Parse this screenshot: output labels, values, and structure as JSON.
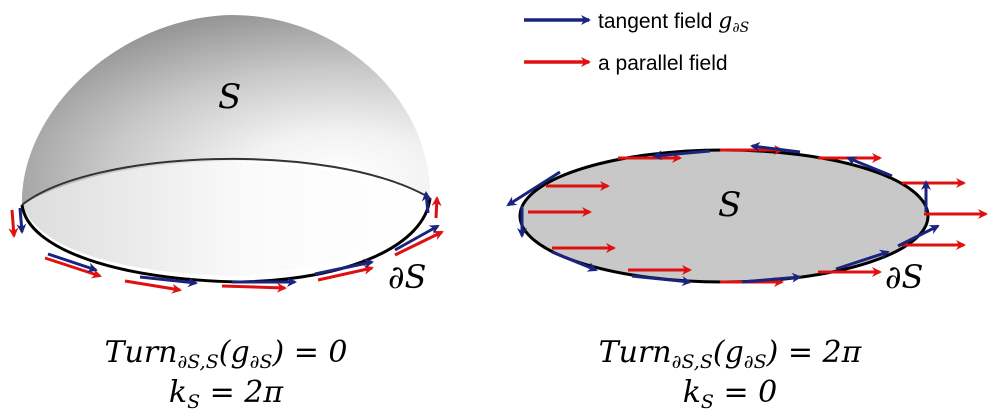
{
  "legend": {
    "tangent_label": "tangent field ",
    "tangent_symbol": "g",
    "tangent_subscript": "∂S",
    "parallel_label": "a parallel field",
    "tangent_color": "#1a237e",
    "parallel_color": "#e01010"
  },
  "left_panel": {
    "surface_label": "S",
    "boundary_label": "∂S",
    "equation_turn": {
      "prefix": "Turn",
      "subscript": "∂S,S",
      "open": "(",
      "g": "g",
      "g_subscript": "∂S",
      "rest": ") = 0"
    },
    "equation_k": {
      "k": "k",
      "subscript": "S",
      "rest": " = 2π"
    }
  },
  "right_panel": {
    "surface_label": "S",
    "boundary_label": "∂S",
    "equation_turn": {
      "prefix": "Turn",
      "subscript": "∂S,S",
      "open": "(",
      "g": "g",
      "g_subscript": "∂S",
      "rest": ") = 2π"
    },
    "equation_k": {
      "k": "k",
      "subscript": "S",
      "rest": " = 0"
    }
  }
}
